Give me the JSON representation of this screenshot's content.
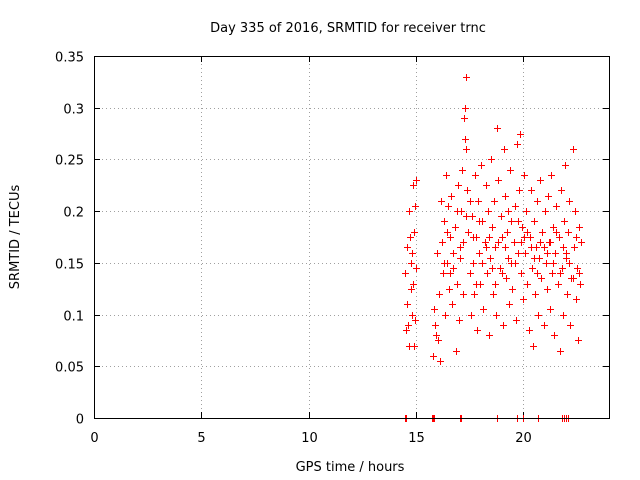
{
  "chart_data": {
    "type": "scatter",
    "title": "Day 335 of 2016, SRMTID for receiver trnc",
    "xlabel": "GPS time / hours",
    "ylabel": "SRMTID / TECUs",
    "xlim": [
      0,
      24
    ],
    "ylim": [
      0,
      0.35
    ],
    "xticks": [
      0,
      5,
      10,
      15,
      20
    ],
    "yticks": [
      0,
      0.05,
      0.1,
      0.15,
      0.2,
      0.25,
      0.3,
      0.35
    ],
    "xtick_labels": [
      "0",
      "5",
      "10",
      "15",
      "20"
    ],
    "ytick_labels": [
      "0",
      "0.05",
      "0.1",
      "0.15",
      "0.2",
      "0.25",
      "0.3",
      "0.35"
    ],
    "grid": true,
    "marker": "+",
    "color": "#ff0000",
    "series": [
      {
        "points": [
          [
            14.5,
            0.0
          ],
          [
            14.55,
            0.0
          ],
          [
            15.75,
            0.0
          ],
          [
            15.8,
            0.0
          ],
          [
            15.85,
            0.0
          ],
          [
            17.05,
            0.0
          ],
          [
            17.1,
            0.0
          ],
          [
            18.8,
            0.0
          ],
          [
            19.7,
            0.0
          ],
          [
            20.0,
            0.0
          ],
          [
            20.7,
            0.0
          ],
          [
            21.8,
            0.0
          ],
          [
            21.9,
            0.0
          ],
          [
            22.0,
            0.0
          ],
          [
            22.1,
            0.0
          ],
          [
            14.5,
            0.14
          ],
          [
            14.55,
            0.085
          ],
          [
            14.6,
            0.11
          ],
          [
            14.65,
            0.09
          ],
          [
            14.7,
            0.2
          ],
          [
            14.72,
            0.175
          ],
          [
            14.75,
            0.15
          ],
          [
            14.78,
            0.125
          ],
          [
            14.8,
            0.16
          ],
          [
            14.82,
            0.1
          ],
          [
            14.85,
            0.225
          ],
          [
            14.88,
            0.13
          ],
          [
            14.9,
            0.18
          ],
          [
            14.92,
            0.07
          ],
          [
            14.95,
            0.205
          ],
          [
            14.98,
            0.095
          ],
          [
            15.0,
            0.23
          ],
          [
            15.02,
            0.145
          ],
          [
            14.6,
            0.165
          ],
          [
            14.68,
            0.07
          ],
          [
            15.8,
            0.06
          ],
          [
            15.85,
            0.105
          ],
          [
            15.9,
            0.09
          ],
          [
            15.95,
            0.08
          ],
          [
            16.0,
            0.16
          ],
          [
            16.05,
            0.075
          ],
          [
            16.1,
            0.12
          ],
          [
            16.12,
            0.055
          ],
          [
            16.15,
            0.21
          ],
          [
            16.2,
            0.17
          ],
          [
            16.25,
            0.14
          ],
          [
            16.3,
            0.19
          ],
          [
            16.35,
            0.1
          ],
          [
            16.4,
            0.235
          ],
          [
            16.45,
            0.15
          ],
          [
            16.5,
            0.205
          ],
          [
            16.55,
            0.125
          ],
          [
            16.6,
            0.175
          ],
          [
            16.65,
            0.215
          ],
          [
            16.7,
            0.11
          ],
          [
            16.75,
            0.16
          ],
          [
            16.8,
            0.185
          ],
          [
            16.85,
            0.065
          ],
          [
            16.9,
            0.13
          ],
          [
            16.95,
            0.225
          ],
          [
            17.0,
            0.095
          ],
          [
            17.05,
            0.155
          ],
          [
            17.1,
            0.2
          ],
          [
            17.15,
            0.24
          ],
          [
            17.2,
            0.17
          ],
          [
            17.25,
            0.29
          ],
          [
            17.28,
            0.27
          ],
          [
            17.3,
            0.3
          ],
          [
            17.33,
            0.33
          ],
          [
            17.35,
            0.26
          ],
          [
            17.4,
            0.22
          ],
          [
            17.45,
            0.18
          ],
          [
            17.5,
            0.14
          ],
          [
            17.55,
            0.1
          ],
          [
            17.6,
            0.195
          ],
          [
            17.65,
            0.15
          ],
          [
            17.7,
            0.12
          ],
          [
            17.75,
            0.235
          ],
          [
            17.8,
            0.175
          ],
          [
            17.85,
            0.085
          ],
          [
            17.9,
            0.21
          ],
          [
            17.95,
            0.16
          ],
          [
            18.0,
            0.13
          ],
          [
            18.05,
            0.245
          ],
          [
            18.1,
            0.19
          ],
          [
            18.15,
            0.105
          ],
          [
            18.2,
            0.17
          ],
          [
            18.25,
            0.225
          ],
          [
            18.3,
            0.14
          ],
          [
            18.35,
            0.2
          ],
          [
            18.4,
            0.08
          ],
          [
            18.45,
            0.155
          ],
          [
            18.5,
            0.25
          ],
          [
            18.55,
            0.185
          ],
          [
            18.6,
            0.12
          ],
          [
            18.65,
            0.21
          ],
          [
            18.7,
            0.165
          ],
          [
            18.75,
            0.1
          ],
          [
            18.8,
            0.28
          ],
          [
            18.85,
            0.23
          ],
          [
            18.9,
            0.145
          ],
          [
            18.95,
            0.195
          ],
          [
            19.0,
            0.175
          ],
          [
            19.05,
            0.09
          ],
          [
            19.1,
            0.26
          ],
          [
            19.15,
            0.215
          ],
          [
            19.2,
            0.135
          ],
          [
            19.25,
            0.18
          ],
          [
            19.3,
            0.155
          ],
          [
            19.35,
            0.11
          ],
          [
            19.4,
            0.24
          ],
          [
            19.45,
            0.19
          ],
          [
            19.5,
            0.125
          ],
          [
            19.55,
            0.17
          ],
          [
            19.6,
            0.205
          ],
          [
            19.65,
            0.095
          ],
          [
            19.7,
            0.265
          ],
          [
            19.75,
            0.16
          ],
          [
            19.8,
            0.22
          ],
          [
            19.85,
            0.275
          ],
          [
            19.9,
            0.14
          ],
          [
            19.95,
            0.185
          ],
          [
            20.0,
            0.115
          ],
          [
            20.05,
            0.235
          ],
          [
            20.1,
            0.16
          ],
          [
            20.15,
            0.2
          ],
          [
            20.2,
            0.13
          ],
          [
            20.25,
            0.085
          ],
          [
            20.3,
            0.175
          ],
          [
            20.35,
            0.22
          ],
          [
            20.4,
            0.145
          ],
          [
            20.45,
            0.07
          ],
          [
            20.5,
            0.19
          ],
          [
            20.55,
            0.12
          ],
          [
            20.6,
            0.165
          ],
          [
            20.65,
            0.21
          ],
          [
            20.7,
            0.1
          ],
          [
            20.75,
            0.155
          ],
          [
            20.8,
            0.23
          ],
          [
            20.85,
            0.135
          ],
          [
            20.9,
            0.18
          ],
          [
            20.95,
            0.09
          ],
          [
            21.0,
            0.2
          ],
          [
            21.05,
            0.15
          ],
          [
            21.1,
            0.125
          ],
          [
            21.15,
            0.215
          ],
          [
            21.2,
            0.17
          ],
          [
            21.25,
            0.105
          ],
          [
            21.3,
            0.235
          ],
          [
            21.35,
            0.14
          ],
          [
            21.4,
            0.185
          ],
          [
            21.45,
            0.08
          ],
          [
            21.5,
            0.16
          ],
          [
            21.55,
            0.205
          ],
          [
            21.6,
            0.13
          ],
          [
            21.65,
            0.175
          ],
          [
            21.7,
            0.065
          ],
          [
            21.75,
            0.22
          ],
          [
            21.8,
            0.145
          ],
          [
            21.85,
            0.1
          ],
          [
            21.9,
            0.19
          ],
          [
            21.95,
            0.245
          ],
          [
            22.0,
            0.155
          ],
          [
            22.05,
            0.12
          ],
          [
            22.1,
            0.18
          ],
          [
            22.15,
            0.21
          ],
          [
            22.2,
            0.09
          ],
          [
            22.25,
            0.135
          ],
          [
            22.3,
            0.26
          ],
          [
            22.35,
            0.165
          ],
          [
            22.4,
            0.2
          ],
          [
            22.45,
            0.115
          ],
          [
            22.5,
            0.145
          ],
          [
            22.55,
            0.075
          ],
          [
            22.6,
            0.185
          ],
          [
            22.65,
            0.13
          ],
          [
            22.7,
            0.17
          ],
          [
            16.3,
            0.15
          ],
          [
            16.6,
            0.14
          ],
          [
            16.9,
            0.2
          ],
          [
            17.2,
            0.12
          ],
          [
            17.5,
            0.21
          ],
          [
            17.8,
            0.13
          ],
          [
            18.1,
            0.15
          ],
          [
            18.4,
            0.175
          ],
          [
            18.7,
            0.13
          ],
          [
            19.0,
            0.14
          ],
          [
            19.3,
            0.2
          ],
          [
            19.6,
            0.15
          ],
          [
            19.9,
            0.17
          ],
          [
            20.2,
            0.18
          ],
          [
            20.5,
            0.155
          ],
          [
            20.8,
            0.17
          ],
          [
            21.1,
            0.16
          ],
          [
            21.4,
            0.15
          ],
          [
            21.7,
            0.14
          ],
          [
            22.0,
            0.16
          ],
          [
            22.3,
            0.135
          ],
          [
            22.6,
            0.14
          ],
          [
            16.45,
            0.18
          ],
          [
            16.75,
            0.145
          ],
          [
            17.05,
            0.165
          ],
          [
            17.35,
            0.195
          ],
          [
            17.65,
            0.175
          ],
          [
            17.95,
            0.19
          ],
          [
            18.25,
            0.165
          ],
          [
            18.55,
            0.145
          ],
          [
            18.85,
            0.17
          ],
          [
            19.15,
            0.165
          ],
          [
            19.45,
            0.15
          ],
          [
            19.75,
            0.19
          ],
          [
            20.05,
            0.175
          ],
          [
            20.35,
            0.165
          ],
          [
            20.65,
            0.14
          ],
          [
            20.95,
            0.165
          ],
          [
            21.25,
            0.17
          ],
          [
            21.55,
            0.18
          ],
          [
            21.85,
            0.165
          ],
          [
            22.15,
            0.15
          ],
          [
            22.45,
            0.175
          ]
        ]
      }
    ]
  }
}
